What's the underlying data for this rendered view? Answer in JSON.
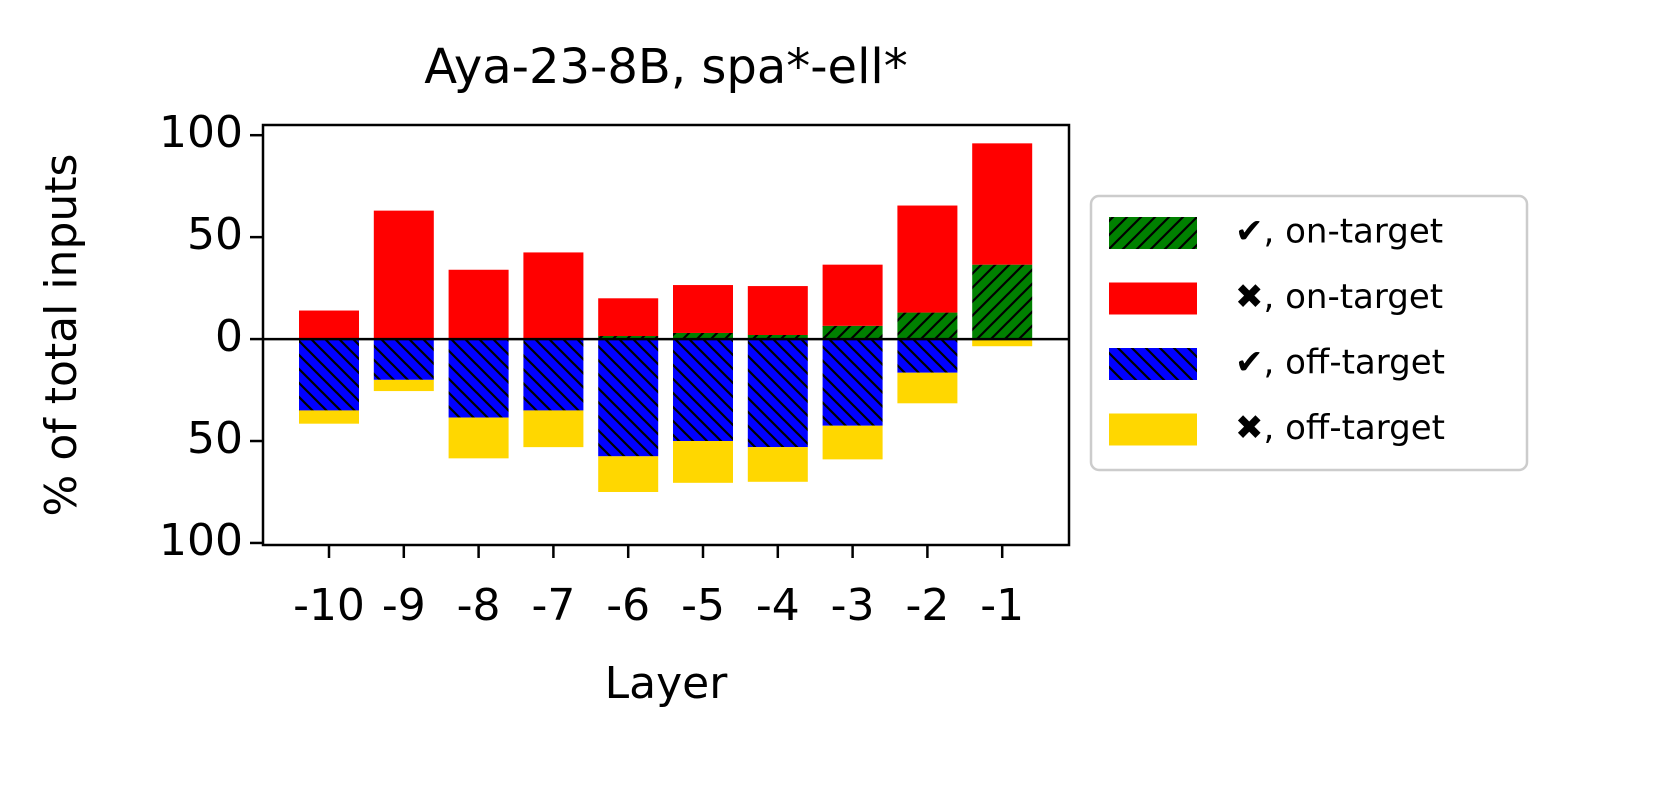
{
  "chart_data": {
    "type": "bar",
    "stacked": true,
    "title": "Aya-23-8B, spa*-ell*",
    "xlabel": "Layer",
    "ylabel": "% of total inputs",
    "categories": [
      "-10",
      "-9",
      "-8",
      "-7",
      "-6",
      "-5",
      "-4",
      "-3",
      "-2",
      "-1"
    ],
    "series": [
      {
        "name": "✔, on-target",
        "color": "#008000",
        "hatch": "/",
        "values": [
          0,
          0,
          0,
          0,
          1.5,
          3,
          2,
          6.5,
          13,
          36.5
        ]
      },
      {
        "name": "✖, on-target",
        "color": "#ff0000",
        "values": [
          14,
          63,
          34,
          42.5,
          18.5,
          23.5,
          24,
          30,
          52.5,
          59.5
        ]
      },
      {
        "name": "✔, off-target",
        "color": "#0000ff",
        "hatch": "\\",
        "values": [
          -35,
          -20,
          -38.5,
          -35,
          -57.5,
          -50,
          -53,
          -42.5,
          -16.5,
          0
        ]
      },
      {
        "name": "✖, off-target",
        "color": "#ffd700",
        "values": [
          -6.5,
          -5.5,
          -20,
          -18,
          -17.5,
          -20.5,
          -17,
          -16.5,
          -15,
          -3.5
        ]
      }
    ],
    "ylim": [
      -101,
      105
    ],
    "yticks": [
      {
        "value": -100,
        "label": "100"
      },
      {
        "value": -50,
        "label": "50"
      },
      0,
      50,
      100
    ],
    "legend": "outside-right"
  }
}
